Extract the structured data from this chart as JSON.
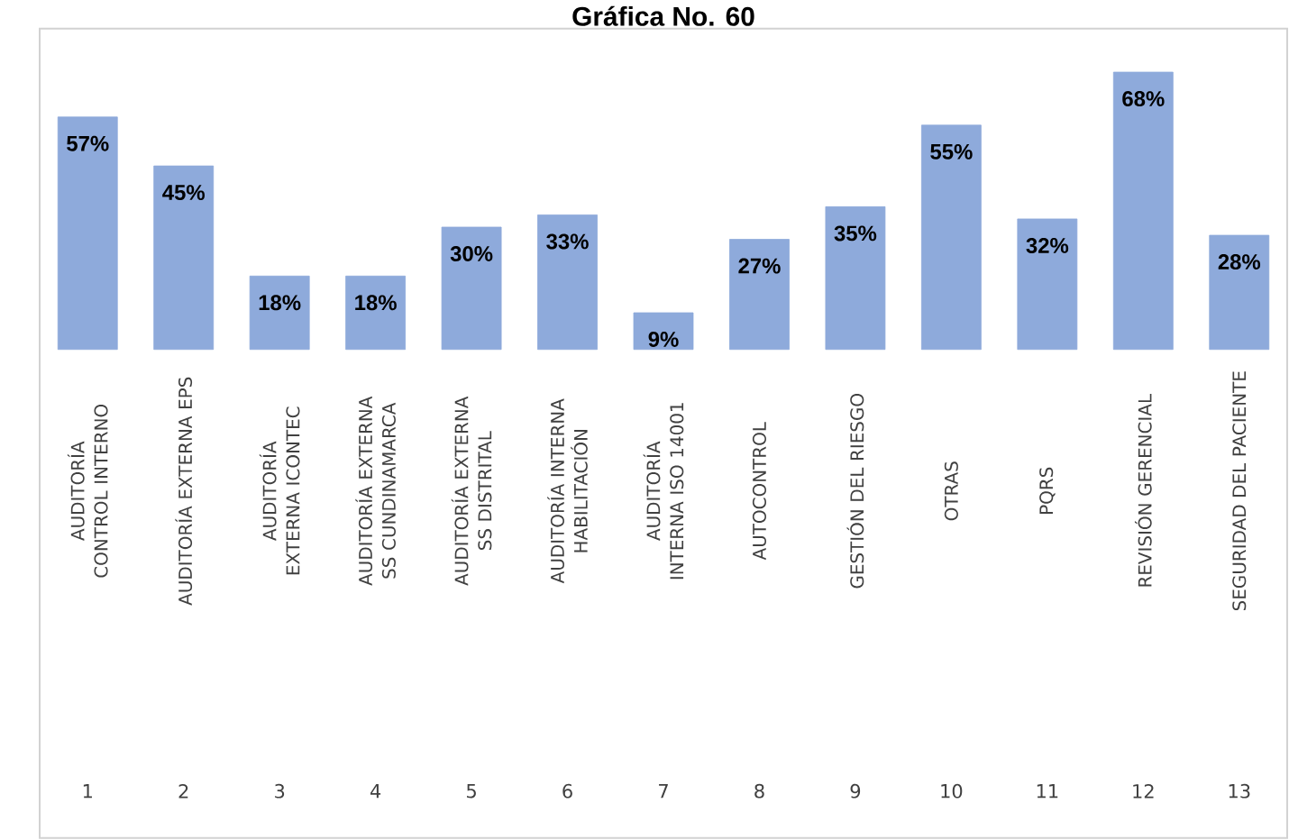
{
  "chart_data": {
    "type": "bar",
    "title": "Gráfica No. 60",
    "categories": [
      "AUDITORÍA CONTROL INTERNO",
      "AUDITORÍA EXTERNA EPS",
      "AUDITORÍA EXTERNA ICONTEC",
      "AUDITORÍA EXTERNA SS CUNDINAMARCA",
      "AUDITORÍA EXTERNA SS DISTRITAL",
      "AUDITORÍA INTERNA HABILITACIÓN",
      "AUDITORÍA INTERNA ISO 14001",
      "AUTOCONTROL",
      "GESTIÓN DEL RIESGO",
      "OTRAS",
      "PQRS",
      "REVISIÓN GERENCIAL",
      "SEGURIDAD DEL PACIENTE"
    ],
    "values": [
      57,
      45,
      18,
      18,
      30,
      33,
      9,
      27,
      35,
      55,
      32,
      68,
      28
    ],
    "value_labels": [
      "57%",
      "45%",
      "18%",
      "18%",
      "30%",
      "33%",
      "9%",
      "27%",
      "35%",
      "55%",
      "32%",
      "68%",
      "28%"
    ],
    "color": "#8eaadb",
    "annotations": [
      "1",
      "2",
      "3",
      "4",
      "5",
      "6",
      "7",
      "8",
      "9",
      "10",
      "11",
      "12",
      "13"
    ],
    "data_labels": true
  }
}
